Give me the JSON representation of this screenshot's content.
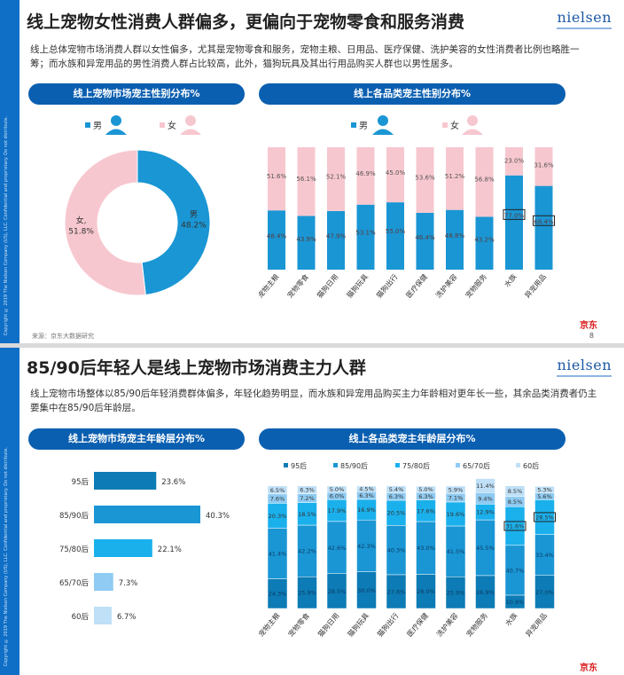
{
  "slide1": {
    "title": "线上宠物女性消费人群偏多，更偏向于宠物零食和服务消费",
    "logo": "nielsen",
    "desc": "线上总体宠物市场消费人群以女性偏多，尤其是宠物零食和服务，宠物主粮、日用品、医疗保健、洗护美容的女性消费者比例也略胜一筹；而水族和异宠用品的男性消费人群占比较高，此外，猫狗玩具及其出行用品购买人群也以男性居多。",
    "left_header": "线上宠物市场宠主性别分布%",
    "right_header": "线上各品类宠主性别分布%",
    "legend_male": "男",
    "legend_female": "女",
    "source": "来源：京东大数据研究",
    "jd": "京东",
    "page": "8",
    "copyright": "Copyright © 2019 The Nielsen Company (US), LLC. Confidential and proprietary. Do not distribute."
  },
  "slide2": {
    "title": "85/90后年轻人是线上宠物市场消费主力人群",
    "logo": "nielsen",
    "desc": "线上宠物市场整体以85/90后年轻消费群体偏多，年轻化趋势明显，而水族和异宠用品购买主力年龄相对更年长一些，其余品类消费者仍主要集中在85/90后年龄层。",
    "left_header": "线上宠物市场宠主年龄层分布%",
    "right_header": "线上各品类宠主年龄层分布%",
    "jd": "京东",
    "copyright": "Copyright © 2019 The Nielsen Company (US), LLC. Confidential and proprietary. Do not distribute."
  },
  "colors": {
    "male": "#1a96d4",
    "female": "#f7c7cf",
    "age_95": "#0d7bb5",
    "age_8590": "#1a96d4",
    "age_7580": "#1ab0ec",
    "age_6570": "#8fcbf2",
    "age_60": "#bfe0f7",
    "header": "#0b5fb0"
  },
  "chart_data": [
    {
      "type": "pie",
      "labels": [
        "男",
        "女"
      ],
      "values": [
        48.2,
        51.8
      ],
      "label_text": [
        "男\n48.2%",
        "女,\n51.8%"
      ]
    },
    {
      "type": "bar",
      "stacked": true,
      "categories": [
        "宠物主粮",
        "宠物零食",
        "猫狗日用",
        "猫狗玩具",
        "猫狗出行",
        "医疗保健",
        "洗护美容",
        "宠物服务",
        "水族",
        "异宠用品"
      ],
      "series": [
        {
          "name": "男",
          "values": [
            48.4,
            43.9,
            47.9,
            53.1,
            55.0,
            46.4,
            48.8,
            43.2,
            77.0,
            68.4
          ]
        },
        {
          "name": "女",
          "values": [
            51.6,
            56.1,
            52.1,
            46.9,
            45.0,
            53.6,
            51.2,
            56.8,
            23.0,
            31.6
          ]
        }
      ],
      "highlighted": [
        [
          "水族",
          "男"
        ],
        [
          "异宠用品",
          "男"
        ]
      ]
    },
    {
      "type": "bar",
      "orientation": "horizontal",
      "categories": [
        "95后",
        "85/90后",
        "75/80后",
        "65/70后",
        "60后"
      ],
      "values": [
        23.6,
        40.3,
        22.1,
        7.3,
        6.7
      ]
    },
    {
      "type": "bar",
      "stacked": true,
      "categories": [
        "宠物主粮",
        "宠物零食",
        "猫狗日用",
        "猫狗玩具",
        "猫狗出行",
        "医疗保健",
        "洗护美容",
        "宠物服务",
        "水族",
        "异宠用品"
      ],
      "series": [
        {
          "name": "95后",
          "values": [
            24.3,
            25.9,
            28.5,
            30.0,
            27.6,
            28.0,
            25.9,
            26.9,
            10.9,
            27.0
          ]
        },
        {
          "name": "85/90后",
          "values": [
            41.4,
            42.2,
            42.6,
            42.3,
            40.3,
            43.0,
            41.5,
            45.5,
            40.7,
            33.4
          ]
        },
        {
          "name": "75/80后",
          "values": [
            20.3,
            18.5,
            17.9,
            16.9,
            20.5,
            17.6,
            19.6,
            12.9,
            31.6,
            28.5
          ]
        },
        {
          "name": "65/70后",
          "values": [
            7.6,
            7.2,
            6.0,
            6.3,
            6.3,
            6.3,
            7.1,
            9.4,
            8.5,
            5.6
          ]
        },
        {
          "name": "60后",
          "values": [
            6.5,
            6.3,
            5.0,
            4.5,
            5.4,
            5.0,
            5.9,
            11.4,
            8.5,
            5.3
          ]
        }
      ],
      "highlighted": [
        [
          "水族",
          "75/80后"
        ],
        [
          "异宠用品",
          "75/80后"
        ]
      ]
    }
  ]
}
